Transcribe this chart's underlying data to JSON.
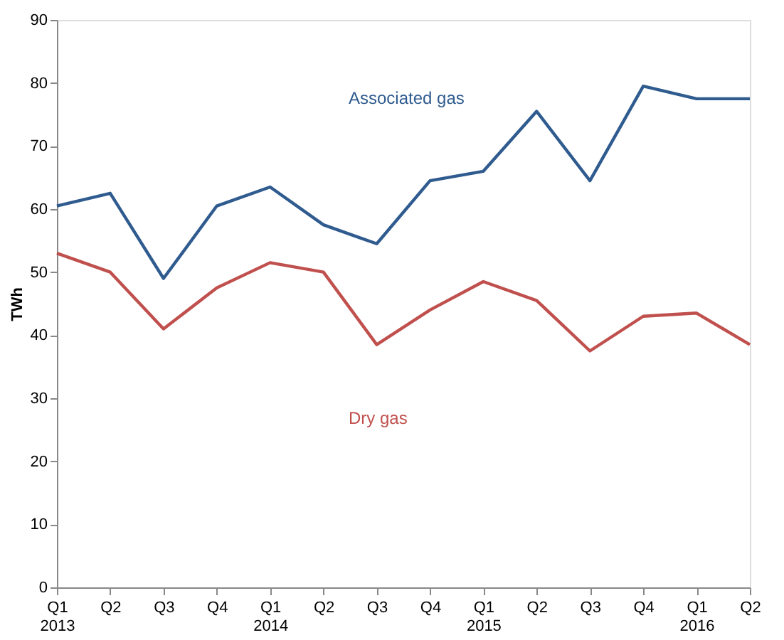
{
  "chart_data": {
    "type": "line",
    "ylabel": "TWh",
    "categories": [
      "Q1\n2013",
      "Q2",
      "Q3",
      "Q4",
      "Q1\n2014",
      "Q2",
      "Q3",
      "Q4",
      "Q1\n2015",
      "Q2",
      "Q3",
      "Q4",
      "Q1\n2016",
      "Q2"
    ],
    "series": [
      {
        "name": "Associated gas",
        "color": "#2f5b8f",
        "values": [
          60.5,
          62.5,
          49,
          60.5,
          63.5,
          57.5,
          54.5,
          64.5,
          66,
          75.5,
          64.5,
          79.5,
          77.5,
          77.5
        ]
      },
      {
        "name": "Dry gas",
        "color": "#c0504d",
        "values": [
          53,
          50,
          41,
          47.5,
          51.5,
          50,
          38.5,
          44,
          48.5,
          45.5,
          37.5,
          43,
          43.5,
          38.5
        ]
      }
    ],
    "ylim": [
      0,
      90
    ],
    "yticks": [
      0,
      10,
      20,
      30,
      40,
      50,
      60,
      70,
      80,
      90
    ],
    "grid": false,
    "marker": "none",
    "line_style": "solid"
  }
}
